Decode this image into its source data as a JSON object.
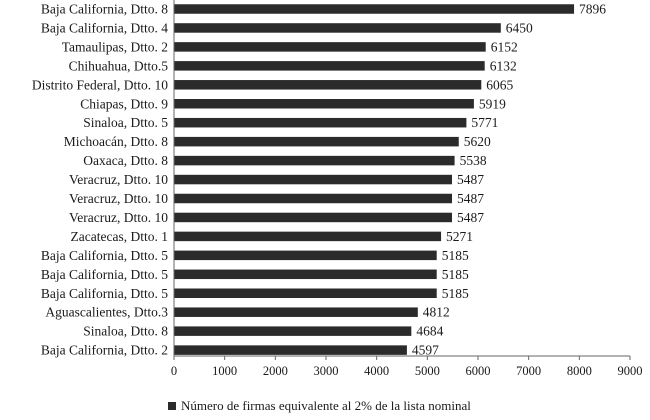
{
  "chart_data": {
    "type": "bar",
    "orientation": "horizontal",
    "categories": [
      "Baja California, Dtto. 8",
      "Baja California, Dtto. 4",
      "Tamaulipas, Dtto. 2",
      "Chihuahua, Dtto.5",
      "Distrito Federal, Dtto. 10",
      "Chiapas, Dtto. 9",
      "Sinaloa, Dtto. 5",
      "Michoacán, Dtto. 8",
      "Oaxaca, Dtto. 8",
      "Veracruz, Dtto. 10",
      "Veracruz, Dtto. 10",
      "Veracruz, Dtto. 10",
      "Zacatecas, Dtto. 1",
      "Baja California, Dtto. 5",
      "Baja California, Dtto. 5",
      "Baja California, Dtto. 5",
      "Aguascalientes, Dtto.3",
      "Sinaloa, Dtto. 8",
      "Baja California, Dtto. 2"
    ],
    "series": [
      {
        "name": "Número de firmas equivalente al 2% de la lista nominal",
        "values": [
          7896,
          6450,
          6152,
          6132,
          6065,
          5919,
          5771,
          5620,
          5538,
          5487,
          5487,
          5487,
          5271,
          5185,
          5185,
          5185,
          4812,
          4684,
          4597
        ]
      }
    ],
    "xlim": [
      0,
      9000
    ],
    "xticks": [
      0,
      1000,
      2000,
      3000,
      4000,
      5000,
      6000,
      7000,
      8000,
      9000
    ],
    "grid": false,
    "legend_position": "bottom",
    "data_labels": true,
    "bar_color": "#2b2b2b"
  }
}
